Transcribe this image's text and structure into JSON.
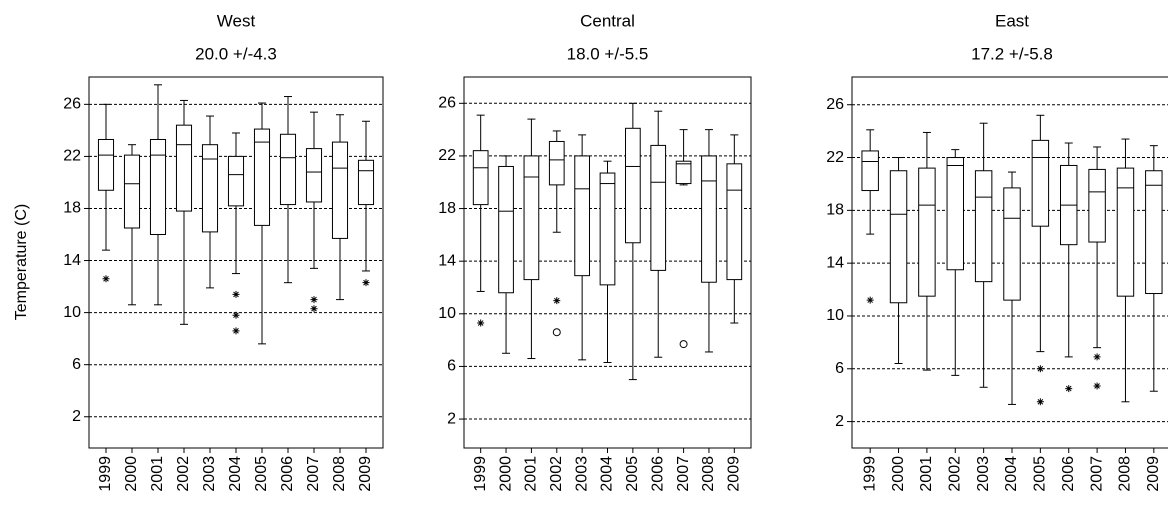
{
  "chart_data": [
    {
      "type": "box",
      "title": "West",
      "subtitle": "20.0 +/-4.3",
      "y_label": "Temperature (C)",
      "categories": [
        "1999",
        "2000",
        "2001",
        "2002",
        "2003",
        "2004",
        "2005",
        "2006",
        "2007",
        "2008",
        "2009"
      ],
      "ylim": [
        -0.4,
        28.1
      ],
      "yticks": [
        2,
        6,
        10,
        14,
        18,
        22,
        26
      ],
      "grid": true,
      "boxes": [
        {
          "low": 14.8,
          "q1": 19.4,
          "median": 22.1,
          "q3": 23.3,
          "high": 26.0,
          "outliers": [
            {
              "value": 12.6,
              "marker": "asterisk"
            }
          ]
        },
        {
          "low": 10.6,
          "q1": 16.5,
          "median": 19.9,
          "q3": 22.1,
          "high": 22.9,
          "outliers": []
        },
        {
          "low": 10.6,
          "q1": 16.0,
          "median": 22.1,
          "q3": 23.3,
          "high": 27.5,
          "outliers": []
        },
        {
          "low": 9.1,
          "q1": 17.8,
          "median": 22.9,
          "q3": 24.4,
          "high": 26.3,
          "outliers": []
        },
        {
          "low": 11.9,
          "q1": 16.2,
          "median": 21.8,
          "q3": 22.9,
          "high": 25.1,
          "outliers": []
        },
        {
          "low": 13.0,
          "q1": 18.2,
          "median": 20.6,
          "q3": 22.0,
          "high": 23.8,
          "outliers": [
            {
              "value": 11.4,
              "marker": "asterisk"
            },
            {
              "value": 9.8,
              "marker": "asterisk"
            },
            {
              "value": 8.6,
              "marker": "asterisk"
            }
          ]
        },
        {
          "low": 7.6,
          "q1": 16.7,
          "median": 23.1,
          "q3": 24.1,
          "high": 26.1,
          "outliers": []
        },
        {
          "low": 12.3,
          "q1": 18.3,
          "median": 21.9,
          "q3": 23.7,
          "high": 26.6,
          "outliers": []
        },
        {
          "low": 13.4,
          "q1": 18.5,
          "median": 20.8,
          "q3": 22.6,
          "high": 25.4,
          "outliers": [
            {
              "value": 11.0,
              "marker": "asterisk"
            },
            {
              "value": 10.3,
              "marker": "asterisk"
            }
          ]
        },
        {
          "low": 11.0,
          "q1": 15.7,
          "median": 21.1,
          "q3": 23.1,
          "high": 25.2,
          "outliers": []
        },
        {
          "low": 13.2,
          "q1": 18.3,
          "median": 20.9,
          "q3": 21.7,
          "high": 24.7,
          "outliers": [
            {
              "value": 12.3,
              "marker": "asterisk"
            }
          ]
        }
      ]
    },
    {
      "type": "box",
      "title": "Central",
      "subtitle": "18.0 +/-5.5",
      "categories": [
        "1999",
        "2000",
        "2001",
        "2002",
        "2003",
        "2004",
        "2005",
        "2006",
        "2007",
        "2008",
        "2009"
      ],
      "ylim": [
        -0.2,
        28.0
      ],
      "yticks": [
        2,
        6,
        10,
        14,
        18,
        22,
        26
      ],
      "grid": true,
      "boxes": [
        {
          "low": 11.7,
          "q1": 18.3,
          "median": 21.1,
          "q3": 22.4,
          "high": 25.1,
          "outliers": [
            {
              "value": 9.3,
              "marker": "asterisk"
            }
          ]
        },
        {
          "low": 7.0,
          "q1": 11.6,
          "median": 17.8,
          "q3": 21.2,
          "high": 22.0,
          "outliers": []
        },
        {
          "low": 6.6,
          "q1": 12.6,
          "median": 20.4,
          "q3": 22.0,
          "high": 24.8,
          "outliers": []
        },
        {
          "low": 16.2,
          "q1": 19.8,
          "median": 21.7,
          "q3": 23.1,
          "high": 23.9,
          "outliers": [
            {
              "value": 11.0,
              "marker": "asterisk"
            },
            {
              "value": 8.6,
              "marker": "circle"
            }
          ]
        },
        {
          "low": 6.5,
          "q1": 12.9,
          "median": 19.5,
          "q3": 22.0,
          "high": 23.6,
          "outliers": []
        },
        {
          "low": 6.3,
          "q1": 12.2,
          "median": 19.9,
          "q3": 20.7,
          "high": 21.6,
          "outliers": []
        },
        {
          "low": 5.0,
          "q1": 15.4,
          "median": 21.2,
          "q3": 24.1,
          "high": 26.0,
          "outliers": []
        },
        {
          "low": 6.7,
          "q1": 13.3,
          "median": 20.0,
          "q3": 22.8,
          "high": 25.4,
          "outliers": []
        },
        {
          "low": 19.8,
          "q1": 19.9,
          "median": 21.4,
          "q3": 21.6,
          "high": 24.0,
          "outliers": [
            {
              "value": 7.7,
              "marker": "circle"
            }
          ]
        },
        {
          "low": 7.1,
          "q1": 12.4,
          "median": 20.1,
          "q3": 22.0,
          "high": 24.0,
          "outliers": []
        },
        {
          "low": 9.3,
          "q1": 12.6,
          "median": 19.4,
          "q3": 21.4,
          "high": 23.6,
          "outliers": []
        }
      ]
    },
    {
      "type": "box",
      "title": "East",
      "subtitle": "17.2 +/-5.8",
      "categories": [
        "1999",
        "2000",
        "2001",
        "2002",
        "2003",
        "2004",
        "2005",
        "2006",
        "2007",
        "2008",
        "2009"
      ],
      "ylim": [
        0.0,
        28.1
      ],
      "yticks": [
        2,
        6,
        10,
        14,
        18,
        22,
        26
      ],
      "grid": true,
      "boxes": [
        {
          "low": 16.2,
          "q1": 19.5,
          "median": 21.7,
          "q3": 22.5,
          "high": 24.1,
          "outliers": [
            {
              "value": 11.2,
              "marker": "asterisk"
            }
          ]
        },
        {
          "low": 6.4,
          "q1": 11.0,
          "median": 17.7,
          "q3": 21.0,
          "high": 22.0,
          "outliers": []
        },
        {
          "low": 5.9,
          "q1": 11.5,
          "median": 18.4,
          "q3": 21.2,
          "high": 23.9,
          "outliers": []
        },
        {
          "low": 5.5,
          "q1": 13.5,
          "median": 21.4,
          "q3": 22.0,
          "high": 22.6,
          "outliers": []
        },
        {
          "low": 4.6,
          "q1": 12.6,
          "median": 19.0,
          "q3": 21.0,
          "high": 24.6,
          "outliers": []
        },
        {
          "low": 3.3,
          "q1": 11.2,
          "median": 17.4,
          "q3": 19.7,
          "high": 20.9,
          "outliers": []
        },
        {
          "low": 7.3,
          "q1": 16.8,
          "median": 22.0,
          "q3": 23.3,
          "high": 25.2,
          "outliers": [
            {
              "value": 6.0,
              "marker": "asterisk"
            },
            {
              "value": 3.5,
              "marker": "asterisk"
            }
          ]
        },
        {
          "low": 6.9,
          "q1": 15.4,
          "median": 18.4,
          "q3": 21.4,
          "high": 23.1,
          "outliers": [
            {
              "value": 4.5,
              "marker": "asterisk"
            }
          ]
        },
        {
          "low": 7.6,
          "q1": 15.6,
          "median": 19.4,
          "q3": 21.1,
          "high": 22.8,
          "outliers": [
            {
              "value": 6.9,
              "marker": "asterisk"
            },
            {
              "value": 4.7,
              "marker": "asterisk"
            }
          ]
        },
        {
          "low": 3.5,
          "q1": 11.5,
          "median": 19.7,
          "q3": 21.2,
          "high": 23.4,
          "outliers": []
        },
        {
          "low": 4.3,
          "q1": 11.7,
          "median": 19.9,
          "q3": 21.0,
          "high": 22.9,
          "outliers": []
        }
      ]
    }
  ]
}
